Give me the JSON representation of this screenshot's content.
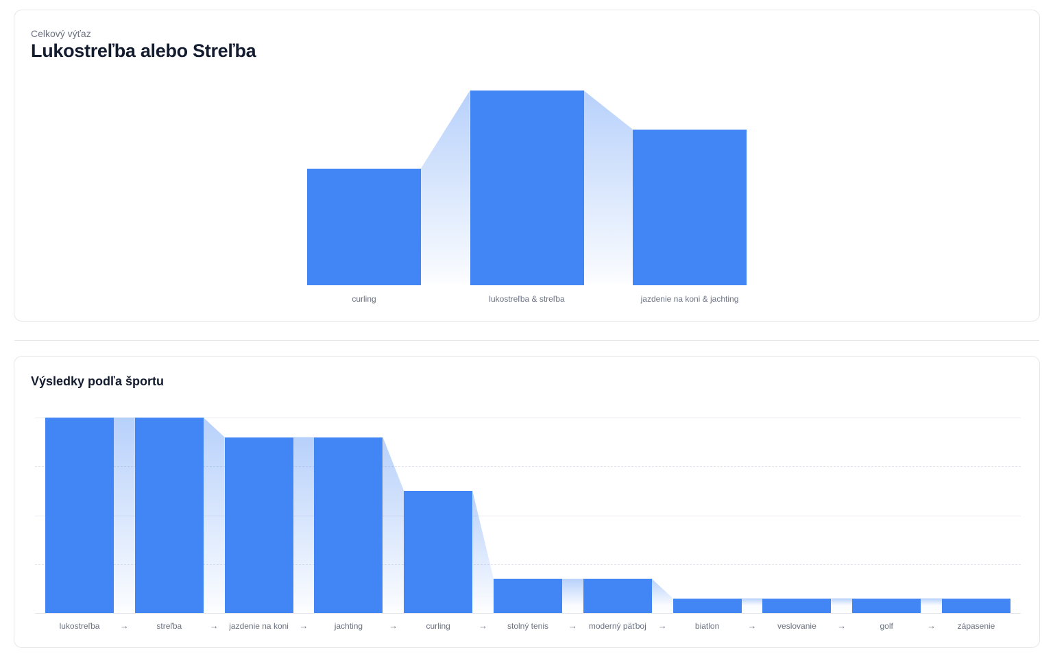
{
  "card1": {
    "eyebrow": "Celkový výťaz",
    "title": "Lukostreľba alebo Streľba"
  },
  "card2": {
    "title": "Výsledky podľa športu"
  },
  "glyphs": {
    "arrow": "→"
  },
  "colors": {
    "bar": "#4285F4",
    "connector_rgb": "66,133,244",
    "grid_solid": "#E8EAEF",
    "grid_dashed": "#E1E4EA",
    "axis": "#E2E5EA",
    "title_text": "#131B2E",
    "muted_text": "#6B7280",
    "card_border": "#E5E7EB",
    "card_bg": "#FFFFFF"
  },
  "chart_data": [
    {
      "id": "total-winner",
      "type": "bar",
      "subtype": "funnel-bar-with-gradient-connectors",
      "title": "Celkový výťaz",
      "subtitle": "Lukostreľba alebo Streľba",
      "categories": [
        "curling",
        "lukostreľba & streľba",
        "jazdenie na koni & jachting"
      ],
      "values": [
        3,
        5,
        4
      ],
      "values_estimated": true,
      "xlabel": "",
      "ylabel": "",
      "ylim": [
        0,
        5
      ],
      "grid": false,
      "axis_labels_visible": false,
      "legend": false
    },
    {
      "id": "results-by-sport",
      "type": "bar",
      "subtype": "funnel-bar-with-gradient-connectors",
      "title": "Výsledky podľa športu",
      "categories": [
        "lukostreľba",
        "streľba",
        "jazdenie na koni",
        "jachting",
        "curling",
        "stolný tenis",
        "moderný päťboj",
        "biatlon",
        "veslovanie",
        "golf",
        "zápasenie"
      ],
      "values": [
        4,
        4,
        3.6,
        3.6,
        2.5,
        0.7,
        0.7,
        0.3,
        0.3,
        0.3,
        0.3
      ],
      "values_estimated": true,
      "xlabel": "",
      "ylabel": "",
      "ylim": [
        0,
        4
      ],
      "grid": true,
      "gridline_values": [
        1,
        2,
        3,
        4
      ],
      "dashed_gridline_values": [
        1,
        3
      ],
      "axis_labels_visible": false,
      "legend": false,
      "category_separator_glyph": "→"
    }
  ]
}
